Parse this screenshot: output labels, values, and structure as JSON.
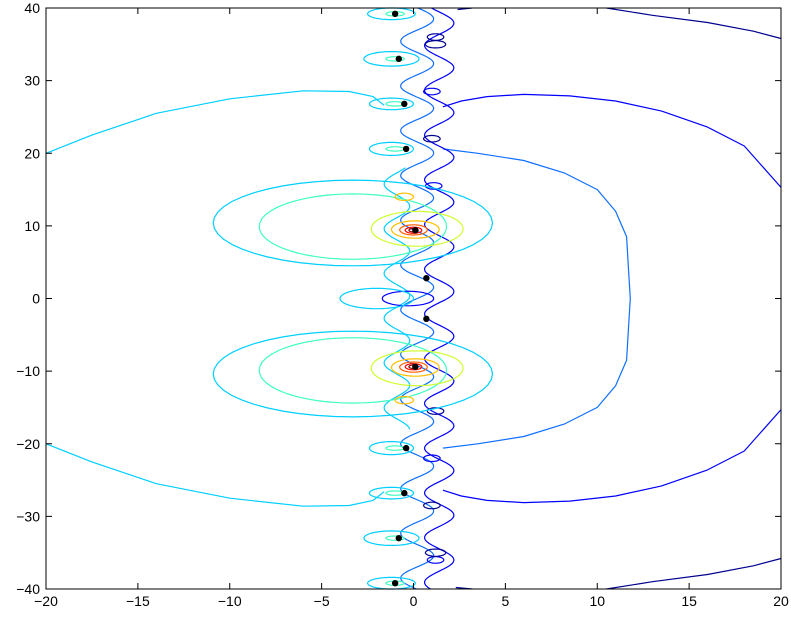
{
  "chart_data": {
    "type": "contour",
    "title": "",
    "xlabel": "",
    "ylabel": "",
    "xlim": [
      -20,
      20
    ],
    "ylim": [
      -40,
      40
    ],
    "x_ticks": [
      -20,
      -15,
      -10,
      -5,
      0,
      5,
      10,
      15,
      20
    ],
    "y_ticks": [
      -40,
      -30,
      -20,
      -10,
      0,
      10,
      20,
      30,
      40
    ],
    "x_tick_labels": [
      "−20",
      "−15",
      "−10",
      "−5",
      "0",
      "5",
      "10",
      "15",
      "20"
    ],
    "y_tick_labels": [
      "−40",
      "−30",
      "−20",
      "−10",
      "0",
      "10",
      "20",
      "30",
      "40"
    ],
    "grid": false,
    "colormap": [
      "#00008f",
      "#0000ff",
      "#0f6fff",
      "#00cfff",
      "#3fffbf",
      "#8fff70",
      "#cfff30",
      "#ffbf00",
      "#ff6000",
      "#ff0000",
      "#8f0000"
    ],
    "black_points": [
      {
        "x": -1.0,
        "y": 39.2
      },
      {
        "x": -0.8,
        "y": 33.0
      },
      {
        "x": -0.5,
        "y": 26.8
      },
      {
        "x": -0.4,
        "y": 20.6
      },
      {
        "x": 0.7,
        "y": 2.8
      },
      {
        "x": 0.7,
        "y": -2.8
      },
      {
        "x": -0.4,
        "y": -20.6
      },
      {
        "x": -0.5,
        "y": -26.8
      },
      {
        "x": -0.8,
        "y": -33.0
      },
      {
        "x": -1.0,
        "y": -39.2
      },
      {
        "x": 0.1,
        "y": 9.4
      },
      {
        "x": 0.1,
        "y": -9.4
      }
    ]
  }
}
